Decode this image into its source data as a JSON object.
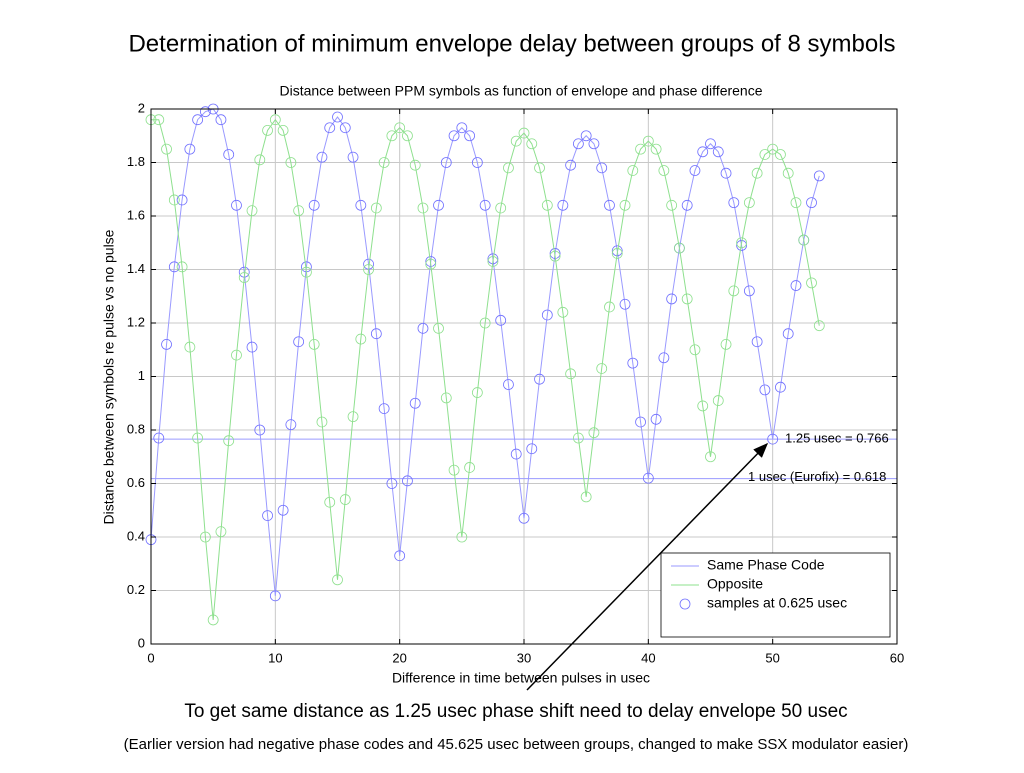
{
  "page": {
    "title": "Determination of minimum envelope delay between groups of 8 symbols",
    "conclusion": "To get same distance as 1.25 usec phase shift need to delay envelope 50 usec",
    "footnote": "(Earlier version had negative phase codes and 45.625 usec between groups, changed to make SSX modulator easier)"
  },
  "chart_data": {
    "type": "line",
    "title": "Distance between PPM symbols as function of envelope and phase difference",
    "x_label": "Difference in time between pulses in usec",
    "y_label": "Distance between symbols re pulse vs no pulse",
    "xlim": [
      0,
      60
    ],
    "ylim": [
      0,
      2
    ],
    "xticks": [
      0,
      10,
      20,
      30,
      40,
      50,
      60
    ],
    "yticks": [
      0,
      0.2,
      0.4,
      0.6,
      0.8,
      1,
      1.2,
      1.4,
      1.6,
      1.8,
      2
    ],
    "grid": true,
    "legend": "lower right",
    "markers": {
      "label": "samples at 0.625 usec",
      "shape": "circle",
      "color": "#7070ff"
    },
    "x": [
      0,
      0.625,
      1.25,
      1.875,
      2.5,
      3.125,
      3.75,
      4.375,
      5,
      5.625,
      6.25,
      6.875,
      7.5,
      8.125,
      8.75,
      9.375,
      10,
      10.625,
      11.25,
      11.875,
      12.5,
      13.125,
      13.75,
      14.375,
      15,
      15.625,
      16.25,
      16.875,
      17.5,
      18.125,
      18.75,
      19.375,
      20,
      20.625,
      21.25,
      21.875,
      22.5,
      23.125,
      23.75,
      24.375,
      25,
      25.625,
      26.25,
      26.875,
      27.5,
      28.125,
      28.75,
      29.375,
      30,
      30.625,
      31.25,
      31.875,
      32.5,
      33.125,
      33.75,
      34.375,
      35,
      35.625,
      36.25,
      36.875,
      37.5,
      38.125,
      38.75,
      39.375,
      40,
      40.625,
      41.25,
      41.875,
      42.5,
      43.125,
      43.75,
      44.375,
      45,
      45.625,
      46.25,
      46.875,
      47.5,
      48.125,
      48.75,
      49.375,
      50,
      50.625,
      51.25,
      51.875,
      52.5,
      53.125,
      53.75
    ],
    "series": [
      {
        "name": "Same Phase Code",
        "color": "#9a9aff",
        "values": [
          0.39,
          0.77,
          1.12,
          1.41,
          1.66,
          1.85,
          1.96,
          1.99,
          2.0,
          1.96,
          1.83,
          1.64,
          1.39,
          1.11,
          0.8,
          0.48,
          0.18,
          0.5,
          0.82,
          1.13,
          1.41,
          1.64,
          1.82,
          1.93,
          1.97,
          1.93,
          1.82,
          1.64,
          1.42,
          1.16,
          0.88,
          0.6,
          0.33,
          0.61,
          0.9,
          1.18,
          1.43,
          1.64,
          1.8,
          1.9,
          1.93,
          1.9,
          1.8,
          1.64,
          1.44,
          1.21,
          0.97,
          0.71,
          0.47,
          0.73,
          0.99,
          1.23,
          1.46,
          1.64,
          1.79,
          1.87,
          1.9,
          1.87,
          1.78,
          1.64,
          1.47,
          1.27,
          1.05,
          0.83,
          0.62,
          0.84,
          1.07,
          1.29,
          1.48,
          1.64,
          1.77,
          1.84,
          1.87,
          1.84,
          1.76,
          1.65,
          1.49,
          1.32,
          1.13,
          0.95,
          0.766,
          0.96,
          1.16,
          1.34,
          1.51,
          1.65,
          1.75
        ]
      },
      {
        "name": "Opposite",
        "color": "#8ee08e",
        "values": [
          1.96,
          1.96,
          1.85,
          1.66,
          1.41,
          1.11,
          0.77,
          0.4,
          0.09,
          0.42,
          0.76,
          1.08,
          1.37,
          1.62,
          1.81,
          1.92,
          1.96,
          1.92,
          1.8,
          1.62,
          1.39,
          1.12,
          0.83,
          0.53,
          0.24,
          0.54,
          0.85,
          1.14,
          1.4,
          1.63,
          1.8,
          1.9,
          1.93,
          1.9,
          1.79,
          1.63,
          1.42,
          1.18,
          0.92,
          0.65,
          0.4,
          0.66,
          0.94,
          1.2,
          1.43,
          1.63,
          1.78,
          1.88,
          1.91,
          1.87,
          1.78,
          1.64,
          1.45,
          1.24,
          1.01,
          0.77,
          0.55,
          0.79,
          1.03,
          1.26,
          1.46,
          1.64,
          1.77,
          1.85,
          1.88,
          1.85,
          1.77,
          1.64,
          1.48,
          1.29,
          1.1,
          0.89,
          0.7,
          0.91,
          1.12,
          1.32,
          1.5,
          1.65,
          1.76,
          1.83,
          1.85,
          1.83,
          1.76,
          1.65,
          1.51,
          1.35,
          1.19
        ]
      }
    ],
    "hlines": [
      {
        "value": 0.766,
        "label": "1.25 usec = 0.766",
        "color": "#9a9aff"
      },
      {
        "value": 0.618,
        "label": "1 usec (Eurofix) = 0.618",
        "color": "#9a9aff"
      }
    ]
  }
}
